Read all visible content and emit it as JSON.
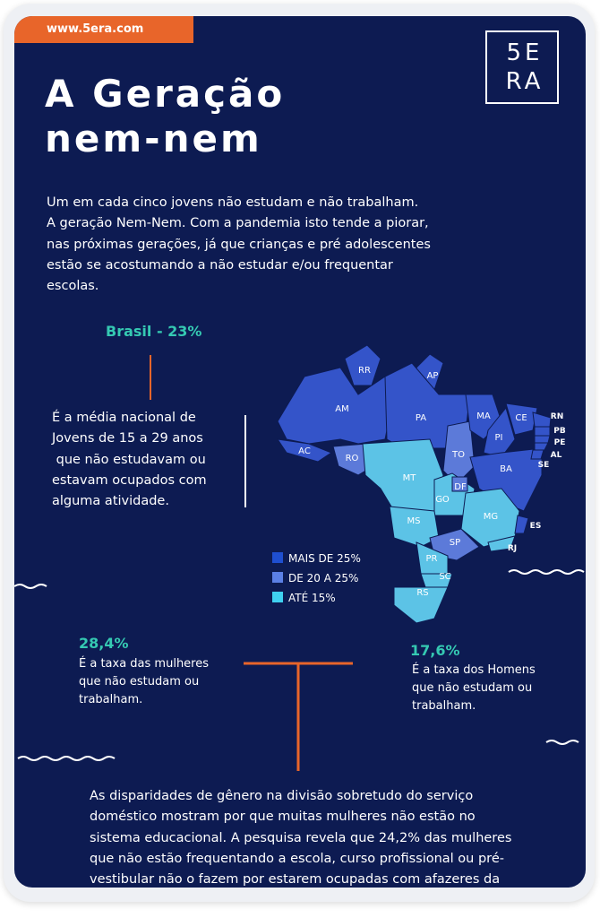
{
  "header": {
    "url": "www.5era.com",
    "logo": [
      "5E",
      "RA"
    ]
  },
  "title": [
    "A Geração",
    "nem-nem"
  ],
  "intro": [
    "Um em cada cinco jovens não estudam e não trabalham.",
    "A geração Nem-Nem. Com a pandemia isto tende a piorar,",
    "nas próximas gerações, já que crianças e pré adolescentes",
    "estão se acostumando a não estudar e/ou frequentar",
    "escolas."
  ],
  "brasil": {
    "label": "Brasil - 23%",
    "text": [
      "É a média nacional de",
      "Jovens de 15 a 29 anos",
      " que não estudavam ou",
      "estavam ocupados com",
      "alguma atividade."
    ]
  },
  "map": {
    "states": [
      {
        "label": "AM",
        "color": "#3454c9"
      },
      {
        "label": "RR",
        "color": "#3454c9"
      },
      {
        "label": "AP",
        "color": "#3454c9"
      },
      {
        "label": "PA",
        "color": "#3454c9"
      },
      {
        "label": "AC",
        "color": "#3454c9"
      },
      {
        "label": "RO",
        "color": "#5c7ad9"
      },
      {
        "label": "MT",
        "color": "#5cc3e6"
      },
      {
        "label": "TO",
        "color": "#5c7ad9"
      },
      {
        "label": "MA",
        "color": "#3454c9"
      },
      {
        "label": "PI",
        "color": "#3454c9"
      },
      {
        "label": "CE",
        "color": "#3454c9"
      },
      {
        "label": "BA",
        "color": "#3454c9"
      },
      {
        "label": "GO",
        "color": "#5cc3e6"
      },
      {
        "label": "DF",
        "color": "#5c7ad9"
      },
      {
        "label": "MS",
        "color": "#5cc3e6"
      },
      {
        "label": "MG",
        "color": "#5cc3e6"
      },
      {
        "label": "ES",
        "color": "#3454c9"
      },
      {
        "label": "RJ",
        "color": "#5cc3e6"
      },
      {
        "label": "SP",
        "color": "#5c7ad9"
      },
      {
        "label": "PR",
        "color": "#5cc3e6"
      },
      {
        "label": "SC",
        "color": "#5cc3e6"
      },
      {
        "label": "RS",
        "color": "#5cc3e6"
      },
      {
        "label": "RN",
        "color": "#3454c9"
      },
      {
        "label": "PB",
        "color": "#3454c9"
      },
      {
        "label": "PE",
        "color": "#3454c9"
      },
      {
        "label": "AL",
        "color": "#3454c9"
      },
      {
        "label": "SE",
        "color": "#3454c9"
      }
    ],
    "legend": [
      {
        "label": "MAIS DE 25%",
        "color": "#1f4fd0"
      },
      {
        "label": "DE 20 A 25%",
        "color": "#5b80e6"
      },
      {
        "label": "ATÉ 15%",
        "color": "#3fd0f0"
      }
    ]
  },
  "women": {
    "value": "28,4%",
    "text": [
      "É a taxa das mulheres",
      "que não estudam ou",
      "trabalham."
    ]
  },
  "men": {
    "value": "17,6%",
    "text": [
      "É a taxa dos Homens",
      "que não estudam ou",
      "trabalham."
    ]
  },
  "footer": [
    "As disparidades de gênero na divisão sobretudo do serviço",
    "doméstico mostram por que muitas mulheres não estão no",
    "sistema educacional. A pesquisa revela que 24,2% das mulheres",
    "que não estão frequentando a escola, curso profissional ou pré-",
    "vestibular não o fazem por estarem ocupadas com afazeres da"
  ]
}
